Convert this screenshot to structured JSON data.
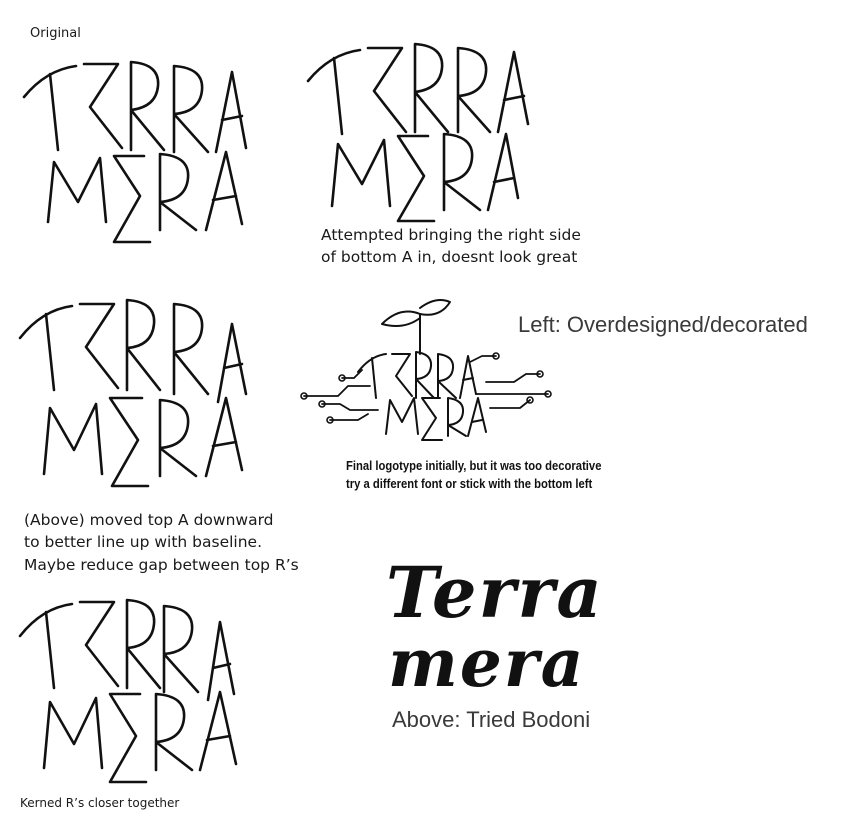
{
  "sketches": [
    {
      "id": "original",
      "title": "TERRA",
      "subtitle": "MERA",
      "caption": "Original"
    },
    {
      "id": "attempt-right-a",
      "title": "TERRA",
      "subtitle": "MERA",
      "caption": "Attempted bringing the right side\nof bottom  A in, doesnt look great"
    },
    {
      "id": "moved-top-a",
      "title": "TERRA",
      "subtitle": "MERA",
      "caption": "(Above) moved top A downward\nto better line up with baseline.\nMaybe reduce gap between top R’s"
    },
    {
      "id": "decorated",
      "title": "TERRA",
      "subtitle": "MERA",
      "caption": "Final logotype initially, but it was too decorative\ntry a different font or stick with the bottom left",
      "side_note": "Left: Overdesigned/decorated"
    },
    {
      "id": "kerned",
      "title": "TERRA",
      "subtitle": "MERA",
      "caption": "Kerned R’s closer together"
    },
    {
      "id": "bodoni",
      "title": "Terra",
      "subtitle": "mera",
      "caption": "Above: Tried Bodoni"
    }
  ]
}
